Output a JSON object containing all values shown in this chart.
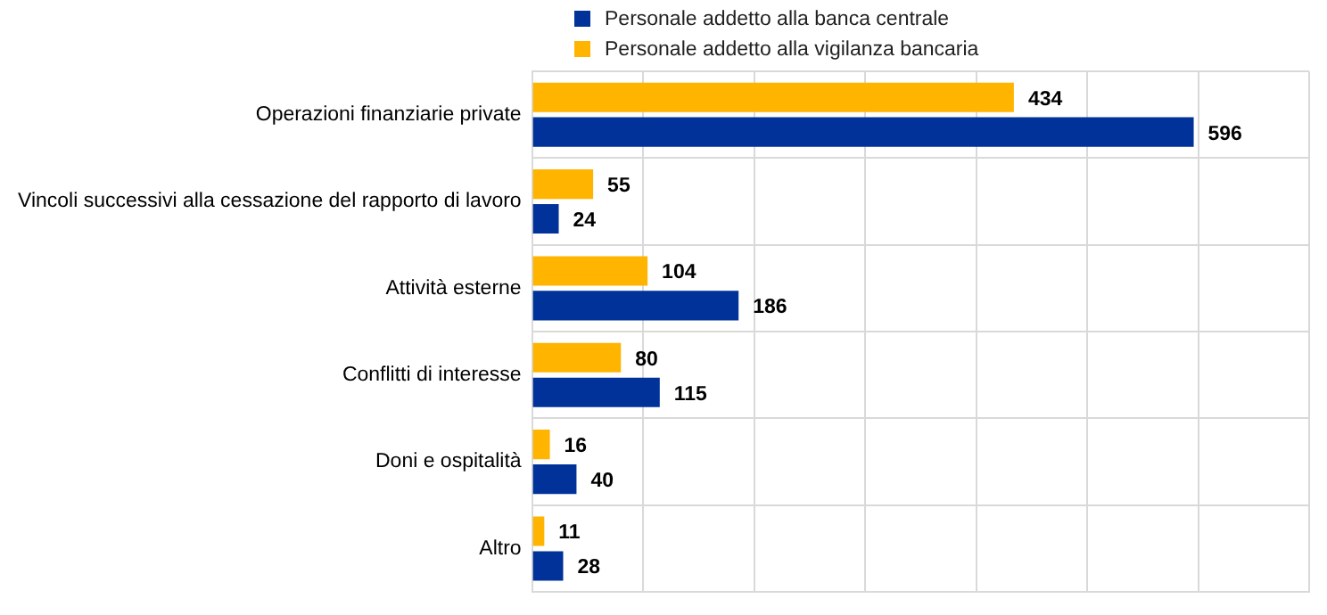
{
  "chart_data": {
    "type": "bar",
    "orientation": "horizontal",
    "categories": [
      "Operazioni finanziarie private",
      "Vincoli successivi alla cessazione del rapporto di lavoro",
      "Attività esterne",
      "Conflitti di interesse",
      "Doni e ospitalità",
      "Altro"
    ],
    "series": [
      {
        "name": "Personale addetto alla banca centrale",
        "color": "#003299",
        "values": [
          596,
          24,
          186,
          115,
          40,
          28
        ]
      },
      {
        "name": "Personale addetto alla vigilanza bancaria",
        "color": "#ffb400",
        "values": [
          434,
          55,
          104,
          80,
          16,
          11
        ]
      }
    ],
    "xlim": [
      0,
      700
    ],
    "xticks": [
      {
        "value": 0,
        "label": null
      },
      {
        "value": 100,
        "label": null
      },
      {
        "value": 200,
        "label": null
      },
      {
        "value": 300,
        "label": null
      },
      {
        "value": 400,
        "label": null
      },
      {
        "value": 500,
        "label": null
      },
      {
        "value": 600,
        "label": null
      },
      {
        "value": 700,
        "label": null
      }
    ],
    "tick_labels": "y",
    "grid": true,
    "legend": "top",
    "data_labels": true
  }
}
